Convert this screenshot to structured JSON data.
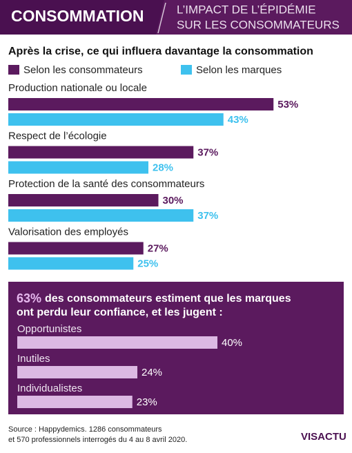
{
  "header": {
    "tag": "CONSOMMATION",
    "title_lines": [
      "L’IMPACT DE L’ÉPIDÉMIE",
      "SUR LES CONSOMMATEURS"
    ]
  },
  "chart_data": [
    {
      "type": "bar",
      "orientation": "horizontal",
      "title": "Après la crise, ce qui influera davantage la consommation",
      "categories": [
        "Production nationale ou locale",
        "Respect de l’écologie",
        "Protection de la santé des consommateurs",
        "Valorisation des employés"
      ],
      "series": [
        {
          "name": "Selon les consommateurs",
          "color": "#5b1a5e",
          "values": [
            53,
            37,
            30,
            27
          ],
          "value_labels": [
            "53%",
            "37%",
            "30%",
            "27%"
          ]
        },
        {
          "name": "Selon les marques",
          "color": "#3ec1ee",
          "values": [
            43,
            28,
            37,
            25
          ],
          "value_labels": [
            "43%",
            "28%",
            "37%",
            "25%"
          ]
        }
      ]
    },
    {
      "type": "bar",
      "orientation": "horizontal",
      "title_highlight": "63%",
      "title_lines": [
        "des consommateurs estiment que les marques",
        "ont perdu leur confiance, et les jugent :"
      ],
      "categories": [
        "Opportunistes",
        "Inutiles",
        "Individualistes"
      ],
      "color": "#dcb9e3",
      "values": [
        40,
        24,
        23
      ],
      "value_labels": [
        "40%",
        "24%",
        "23%"
      ]
    }
  ],
  "source_lines": [
    "Source : Happydemics. 1286 consommateurs",
    "et 570 professionnels interrogés du 4 au 8 avril 2020."
  ],
  "logo": "VISACTU"
}
